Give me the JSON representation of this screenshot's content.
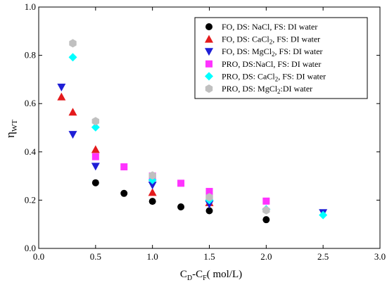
{
  "chart_data": {
    "type": "scatter",
    "xlabel": {
      "main": "C",
      "sub1": "D",
      "mid": "-C",
      "sub2": "F",
      "tail": "( mol/L)"
    },
    "ylabel": {
      "main": "η",
      "sub": "WT"
    },
    "xlim": [
      0.0,
      3.0
    ],
    "ylim": [
      0.0,
      1.0
    ],
    "xticks": [
      "0.0",
      "0.5",
      "1.0",
      "1.5",
      "2.0",
      "2.5",
      "3.0"
    ],
    "yticks": [
      "0.0",
      "0.2",
      "0.4",
      "0.6",
      "0.8",
      "1.0"
    ],
    "grid": false,
    "legend_position": "top-right",
    "series": [
      {
        "legend": {
          "pre": "FO, DS: NaCl, FS: DI water",
          "sub": "",
          "post": ""
        },
        "marker": "circle",
        "color": "#000000",
        "points": [
          [
            0.5,
            0.272
          ],
          [
            0.75,
            0.228
          ],
          [
            1.0,
            0.195
          ],
          [
            1.25,
            0.172
          ],
          [
            1.5,
            0.156
          ],
          [
            2.0,
            0.119
          ]
        ]
      },
      {
        "legend": {
          "pre": "FO, DS: CaCl",
          "sub": "2",
          "post": ", FS: DI water"
        },
        "marker": "triangle-up",
        "color": "#e41a1c",
        "points": [
          [
            0.2,
            0.628
          ],
          [
            0.3,
            0.565
          ],
          [
            0.5,
            0.41
          ],
          [
            1.0,
            0.232
          ],
          [
            1.5,
            0.19
          ]
        ]
      },
      {
        "legend": {
          "pre": "FO, DS: MgCl",
          "sub": "2",
          "post": ", FS: DI water"
        },
        "marker": "triangle-down",
        "color": "#1f1fd6",
        "points": [
          [
            0.2,
            0.668
          ],
          [
            0.3,
            0.472
          ],
          [
            0.5,
            0.34
          ],
          [
            1.0,
            0.262
          ],
          [
            1.5,
            0.183
          ],
          [
            2.5,
            0.148
          ]
        ]
      },
      {
        "legend": {
          "pre": "PRO, DS:NaCl, FS: DI water",
          "sub": "",
          "post": ""
        },
        "marker": "square",
        "color": "#ff33ff",
        "points": [
          [
            0.5,
            0.38
          ],
          [
            0.75,
            0.338
          ],
          [
            1.0,
            0.3
          ],
          [
            1.25,
            0.27
          ],
          [
            1.5,
            0.236
          ],
          [
            2.0,
            0.196
          ]
        ]
      },
      {
        "legend": {
          "pre": "PRO, DS: CaCl",
          "sub": "2",
          "post": ", FS: DI water"
        },
        "marker": "diamond",
        "color": "#00ffff",
        "points": [
          [
            0.3,
            0.792
          ],
          [
            0.5,
            0.502
          ],
          [
            1.0,
            0.283
          ],
          [
            1.5,
            0.2
          ],
          [
            2.0,
            0.162
          ],
          [
            2.5,
            0.138
          ]
        ]
      },
      {
        "legend": {
          "pre": "PRO, DS: MgCl",
          "sub": "2",
          "post": ":DI water"
        },
        "marker": "hexagon",
        "color": "#c0c0c0",
        "points": [
          [
            0.3,
            0.85
          ],
          [
            0.5,
            0.527
          ],
          [
            1.0,
            0.302
          ],
          [
            1.5,
            0.212
          ],
          [
            2.0,
            0.158
          ]
        ]
      }
    ]
  }
}
